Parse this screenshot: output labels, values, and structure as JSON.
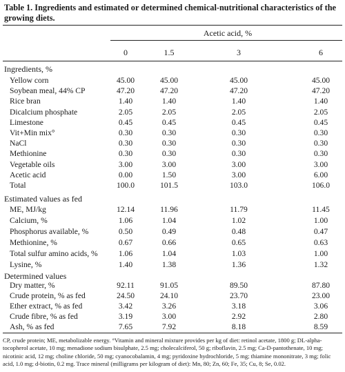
{
  "title": "Table 1. Ingredients and estimated or determined chemical-nutritional characteristics of the growing diets.",
  "header": {
    "group": "Acetic acid, %",
    "columns": [
      "0",
      "1.5",
      "3",
      "6"
    ]
  },
  "sections": [
    {
      "name": "Ingredients, %",
      "rows": [
        {
          "label": "Yellow corn",
          "values": [
            "45.00",
            "45.00",
            "45.00",
            "45.00"
          ]
        },
        {
          "label": "Soybean meal, 44% CP",
          "values": [
            "47.20",
            "47.20",
            "47.20",
            "47.20"
          ]
        },
        {
          "label": "Rice bran",
          "values": [
            "1.40",
            "1.40",
            "1.40",
            "1.40"
          ]
        },
        {
          "label": "Dicalcium phosphate",
          "values": [
            "2.05",
            "2.05",
            "2.05",
            "2.05"
          ]
        },
        {
          "label": "Limestone",
          "values": [
            "0.45",
            "0.45",
            "0.45",
            "0.45"
          ]
        },
        {
          "label": "Vit+Min mix°",
          "values": [
            "0.30",
            "0.30",
            "0.30",
            "0.30"
          ]
        },
        {
          "label": "NaCl",
          "values": [
            "0.30",
            "0.30",
            "0.30",
            "0.30"
          ]
        },
        {
          "label": "Methionine",
          "values": [
            "0.30",
            "0.30",
            "0.30",
            "0.30"
          ]
        },
        {
          "label": "Vegetable oils",
          "values": [
            "3.00",
            "3.00",
            "3.00",
            "3.00"
          ]
        },
        {
          "label": "Acetic acid",
          "values": [
            "0.00",
            "1.50",
            "3.00",
            "6.00"
          ]
        },
        {
          "label": "Total",
          "values": [
            "100.0",
            "101.5",
            "103.0",
            "106.0"
          ]
        }
      ]
    },
    {
      "name": "Estimated values as fed",
      "rows": [
        {
          "label": "ME, MJ/kg",
          "values": [
            "12.14",
            "11.96",
            "11.79",
            "11.45"
          ]
        },
        {
          "label": "Calcium, %",
          "values": [
            "1.06",
            "1.04",
            "1.02",
            "1.00"
          ]
        },
        {
          "label": "Phosphorus available, %",
          "values": [
            "0.50",
            "0.49",
            "0.48",
            "0.47"
          ]
        },
        {
          "label": "Methionine, %",
          "values": [
            "0.67",
            "0.66",
            "0.65",
            "0.63"
          ]
        },
        {
          "label": "Total sulfur amino acids, %",
          "values": [
            "1.06",
            "1.04",
            "1.03",
            "1.00"
          ]
        },
        {
          "label": "Lysine, %",
          "values": [
            "1.40",
            "1.38",
            "1.36",
            "1.32"
          ]
        }
      ]
    },
    {
      "name": "Determined values",
      "rows": [
        {
          "label": "Dry matter, %",
          "values": [
            "92.11",
            "91.05",
            "89.50",
            "87.80"
          ]
        },
        {
          "label": "Crude protein, % as fed",
          "values": [
            "24.50",
            "24.10",
            "23.70",
            "23.00"
          ]
        },
        {
          "label": "Ether extract, % as fed",
          "values": [
            "3.42",
            "3.26",
            "3.18",
            "3.06"
          ]
        },
        {
          "label": "Crude fibre, % as fed",
          "values": [
            "3.19",
            "3.00",
            "2.92",
            "2.80"
          ]
        },
        {
          "label": "Ash, % as fed",
          "values": [
            "7.65",
            "7.92",
            "8.18",
            "8.59"
          ]
        }
      ]
    }
  ],
  "footnote": "CP, crude protein; ME, metabolizable energy. °Vitamin and mineral mixture provides per kg of diet: retinol acetate, 1800 g; DL-alpha-tocopherol acetate, 10 mg; menadione sodium bisulphate, 2.5 mg; cholecalciferol, 50 g; riboflavin, 2.5 mg; Ca-D-pantothenate, 10 mg; nicotinic acid, 12 mg; choline chloride, 50 mg; cyanocobalamin, 4 mg; pyridoxine hydrochloride, 5 mg; thiamine mononitrate, 3 mg; folic acid, 1.0 mg; d-biotin, 0.2 mg. Trace mineral (milligrams per kilogram of diet): Mn, 80; Zn, 60; Fe, 35; Cu, 8; Se, 0.02."
}
